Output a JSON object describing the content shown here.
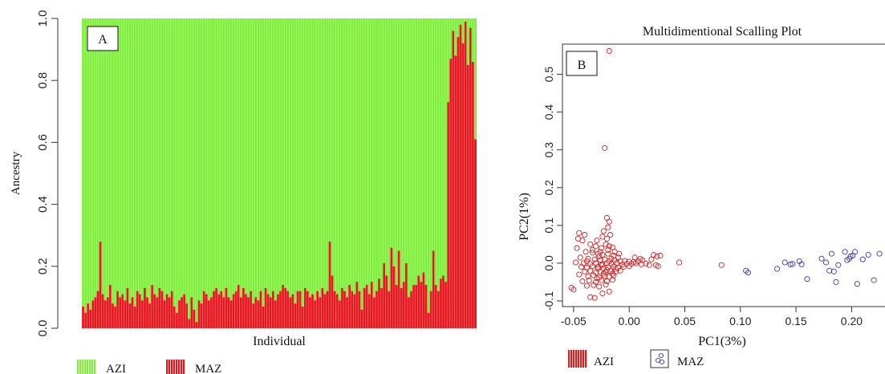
{
  "chart_data": [
    {
      "type": "bar",
      "subtype": "stacked-ancestry",
      "panel_label": "A",
      "xlabel": "Individual",
      "ylabel": "Ancestry",
      "ylim": [
        0,
        1
      ],
      "yticks": [
        "0.0",
        "0.2",
        "0.4",
        "0.6",
        "0.8",
        "1.0"
      ],
      "individual_count": 160,
      "series": [
        {
          "name": "AZI",
          "color": "#7ff03a",
          "values": "complement of MAZ (1 - MAZ)"
        },
        {
          "name": "MAZ",
          "color": "#e8161d"
        }
      ],
      "maz_values": [
        0.07,
        0.05,
        0.08,
        0.06,
        0.09,
        0.1,
        0.12,
        0.28,
        0.11,
        0.09,
        0.1,
        0.14,
        0.08,
        0.07,
        0.12,
        0.1,
        0.11,
        0.09,
        0.13,
        0.08,
        0.1,
        0.07,
        0.12,
        0.11,
        0.09,
        0.13,
        0.1,
        0.08,
        0.14,
        0.11,
        0.1,
        0.13,
        0.12,
        0.09,
        0.11,
        0.1,
        0.12,
        0.07,
        0.05,
        0.09,
        0.1,
        0.11,
        0.08,
        0.03,
        0.1,
        0.06,
        0.02,
        0.09,
        0.08,
        0.12,
        0.11,
        0.09,
        0.1,
        0.12,
        0.13,
        0.11,
        0.12,
        0.1,
        0.13,
        0.1,
        0.09,
        0.11,
        0.12,
        0.14,
        0.1,
        0.13,
        0.11,
        0.1,
        0.12,
        0.08,
        0.1,
        0.09,
        0.12,
        0.07,
        0.13,
        0.11,
        0.1,
        0.12,
        0.09,
        0.11,
        0.12,
        0.14,
        0.13,
        0.12,
        0.1,
        0.11,
        0.08,
        0.12,
        0.12,
        0.07,
        0.13,
        0.12,
        0.1,
        0.11,
        0.09,
        0.12,
        0.1,
        0.13,
        0.11,
        0.12,
        0.28,
        0.17,
        0.12,
        0.11,
        0.09,
        0.13,
        0.12,
        0.1,
        0.14,
        0.12,
        0.11,
        0.15,
        0.12,
        0.06,
        0.13,
        0.14,
        0.11,
        0.15,
        0.1,
        0.12,
        0.16,
        0.13,
        0.21,
        0.17,
        0.12,
        0.26,
        0.2,
        0.14,
        0.25,
        0.13,
        0.15,
        0.21,
        0.1,
        0.12,
        0.14,
        0.14,
        0.17,
        0.15,
        0.18,
        0.14,
        0.05,
        0.12,
        0.25,
        0.14,
        0.12,
        0.16,
        0.17,
        0.15,
        0.73,
        0.87,
        0.96,
        0.88,
        0.94,
        0.98,
        0.92,
        0.99,
        0.85,
        0.97,
        0.86,
        0.61
      ]
    },
    {
      "type": "scatter",
      "panel_label": "B",
      "title": "Multidimentional Scalling Plot",
      "xlabel": "PC1(3%)",
      "ylabel": "PC2(1%)",
      "xlim": [
        -0.06,
        0.23
      ],
      "ylim": [
        -0.115,
        0.58
      ],
      "xticks": [
        "-0.05",
        "0.00",
        "0.05",
        "0.10",
        "0.15",
        "0.20"
      ],
      "yticks": [
        "-0.1",
        "0.0",
        "0.1",
        "0.2",
        "0.3",
        "0.4",
        "0.5"
      ],
      "series": [
        {
          "name": "AZI",
          "color": "#d62020",
          "points": [
            [
              -0.018,
              0.562
            ],
            [
              -0.022,
              0.305
            ],
            [
              -0.02,
              0.12
            ],
            [
              -0.018,
              0.11
            ],
            [
              -0.019,
              0.095
            ],
            [
              -0.023,
              0.085
            ],
            [
              -0.017,
              0.075
            ],
            [
              -0.02,
              0.065
            ],
            [
              -0.045,
              0.08
            ],
            [
              -0.04,
              0.075
            ],
            [
              -0.046,
              0.065
            ],
            [
              -0.042,
              0.06
            ],
            [
              -0.035,
              0.05
            ],
            [
              -0.03,
              0.045
            ],
            [
              -0.025,
              0.04
            ],
            [
              -0.021,
              0.05
            ],
            [
              -0.018,
              0.045
            ],
            [
              -0.015,
              0.042
            ],
            [
              -0.047,
              0.04
            ],
            [
              -0.039,
              0.03
            ],
            [
              -0.033,
              0.028
            ],
            [
              -0.028,
              0.025
            ],
            [
              -0.024,
              0.022
            ],
            [
              -0.019,
              0.025
            ],
            [
              -0.014,
              0.02
            ],
            [
              -0.01,
              0.015
            ],
            [
              -0.044,
              0.015
            ],
            [
              -0.037,
              0.012
            ],
            [
              -0.031,
              0.01
            ],
            [
              -0.026,
              0.008
            ],
            [
              -0.022,
              0.01
            ],
            [
              -0.018,
              0.005
            ],
            [
              -0.013,
              0.008
            ],
            [
              -0.008,
              0.005
            ],
            [
              -0.004,
              0.006
            ],
            [
              0.0,
              0.004
            ],
            [
              0.004,
              0.003
            ],
            [
              0.008,
              0.005
            ],
            [
              -0.048,
              0.002
            ],
            [
              -0.041,
              0.0
            ],
            [
              -0.035,
              -0.002
            ],
            [
              -0.03,
              0.0
            ],
            [
              -0.025,
              -0.003
            ],
            [
              -0.02,
              0.0
            ],
            [
              -0.016,
              -0.002
            ],
            [
              -0.011,
              0.001
            ],
            [
              -0.006,
              -0.004
            ],
            [
              -0.002,
              -0.001
            ],
            [
              0.002,
              -0.002
            ],
            [
              0.006,
              0.0
            ],
            [
              0.011,
              -0.003
            ],
            [
              0.015,
              -0.001
            ],
            [
              -0.043,
              -0.01
            ],
            [
              -0.038,
              -0.012
            ],
            [
              -0.033,
              -0.008
            ],
            [
              -0.028,
              -0.01
            ],
            [
              -0.023,
              -0.013
            ],
            [
              -0.019,
              -0.011
            ],
            [
              -0.014,
              -0.009
            ],
            [
              -0.01,
              -0.012
            ],
            [
              -0.005,
              -0.01
            ],
            [
              0.0,
              -0.008
            ],
            [
              -0.04,
              -0.022
            ],
            [
              -0.035,
              -0.02
            ],
            [
              -0.03,
              -0.025
            ],
            [
              -0.026,
              -0.022
            ],
            [
              -0.021,
              -0.024
            ],
            [
              -0.017,
              -0.021
            ],
            [
              -0.012,
              -0.023
            ],
            [
              -0.008,
              -0.02
            ],
            [
              -0.037,
              -0.035
            ],
            [
              -0.032,
              -0.032
            ],
            [
              -0.027,
              -0.038
            ],
            [
              -0.022,
              -0.034
            ],
            [
              -0.018,
              -0.036
            ],
            [
              -0.014,
              -0.033
            ],
            [
              -0.042,
              -0.048
            ],
            [
              -0.036,
              -0.046
            ],
            [
              -0.03,
              -0.05
            ],
            [
              -0.025,
              -0.045
            ],
            [
              -0.02,
              -0.048
            ],
            [
              -0.015,
              -0.044
            ],
            [
              -0.038,
              -0.06
            ],
            [
              -0.032,
              -0.058
            ],
            [
              -0.027,
              -0.062
            ],
            [
              -0.021,
              -0.057
            ],
            [
              -0.052,
              -0.065
            ],
            [
              -0.05,
              -0.07
            ],
            [
              -0.035,
              -0.09
            ],
            [
              -0.031,
              -0.092
            ],
            [
              -0.024,
              -0.08
            ],
            [
              -0.018,
              -0.075
            ],
            [
              -0.028,
              -0.015
            ],
            [
              -0.024,
              -0.005
            ],
            [
              -0.02,
              -0.018
            ],
            [
              -0.016,
              0.012
            ],
            [
              -0.012,
              -0.015
            ],
            [
              -0.027,
              0.018
            ],
            [
              -0.023,
              -0.028
            ],
            [
              -0.015,
              -0.028
            ],
            [
              -0.029,
              -0.04
            ],
            [
              -0.033,
              0.035
            ],
            [
              -0.038,
              0.005
            ],
            [
              -0.045,
              -0.03
            ],
            [
              0.005,
              0.015
            ],
            [
              0.01,
              0.012
            ],
            [
              0.012,
              0.008
            ],
            [
              0.018,
              -0.005
            ],
            [
              0.02,
              0.01
            ],
            [
              0.022,
              0.022
            ],
            [
              0.025,
              0.018
            ],
            [
              0.028,
              0.02
            ],
            [
              0.024,
              -0.005
            ],
            [
              0.026,
              -0.008
            ],
            [
              0.045,
              0.002
            ],
            [
              0.083,
              -0.005
            ],
            [
              -0.026,
              0.03
            ],
            [
              -0.019,
              0.035
            ],
            [
              -0.013,
              0.03
            ],
            [
              -0.009,
              0.025
            ],
            [
              -0.029,
              0.06
            ],
            [
              -0.024,
              0.07
            ]
          ]
        },
        {
          "name": "MAZ",
          "color": "#3a3aa8",
          "points": [
            [
              0.105,
              -0.02
            ],
            [
              0.107,
              -0.025
            ],
            [
              0.133,
              -0.015
            ],
            [
              0.14,
              0.002
            ],
            [
              0.145,
              -0.003
            ],
            [
              0.147,
              -0.002
            ],
            [
              0.153,
              0.005
            ],
            [
              0.155,
              -0.003
            ],
            [
              0.16,
              -0.042
            ],
            [
              0.173,
              0.012
            ],
            [
              0.177,
              0.002
            ],
            [
              0.18,
              -0.02
            ],
            [
              0.182,
              0.025
            ],
            [
              0.184,
              -0.022
            ],
            [
              0.186,
              -0.05
            ],
            [
              0.188,
              -0.005
            ],
            [
              0.194,
              0.03
            ],
            [
              0.196,
              0.008
            ],
            [
              0.198,
              0.012
            ],
            [
              0.199,
              0.018
            ],
            [
              0.201,
              0.02
            ],
            [
              0.203,
              0.03
            ],
            [
              0.205,
              -0.055
            ],
            [
              0.21,
              0.01
            ],
            [
              0.215,
              0.022
            ],
            [
              0.22,
              -0.045
            ],
            [
              0.225,
              0.025
            ]
          ]
        }
      ]
    }
  ],
  "legend_a": [
    {
      "label": "AZI",
      "color": "#7ff03a"
    },
    {
      "label": "MAZ",
      "color": "#e8161d"
    }
  ],
  "legend_b": [
    {
      "label": "AZI",
      "color": "#d62020",
      "symbol": "bars"
    },
    {
      "label": "MAZ",
      "color": "#3a3aa8",
      "symbol": "circles"
    }
  ]
}
